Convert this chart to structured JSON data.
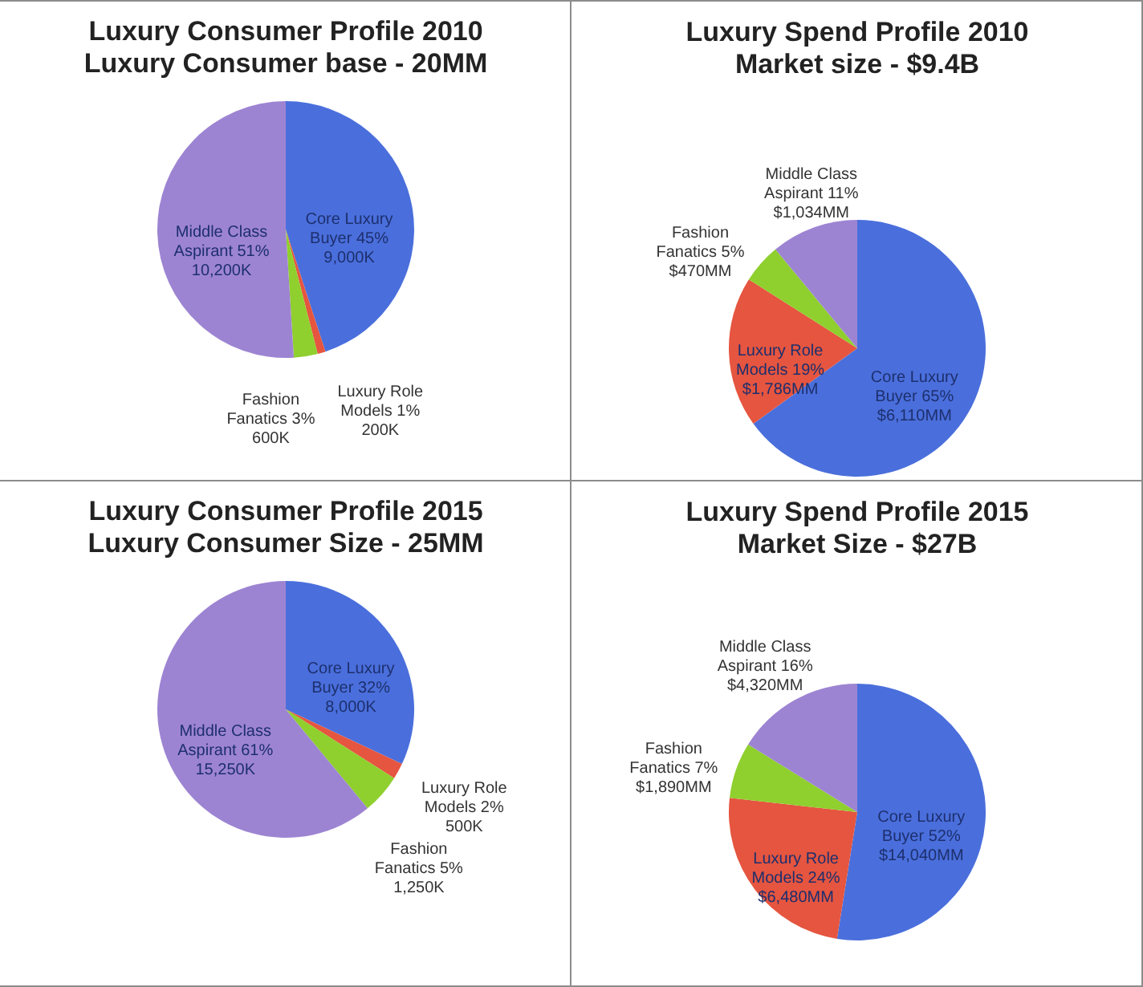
{
  "chart_data": [
    {
      "type": "pie",
      "title": "Luxury Consumer Profile 2010",
      "subtitle": "Luxury Consumer base - 20MM",
      "categories": [
        "Core Luxury Buyer",
        "Luxury Role Models",
        "Fashion Fanatics",
        "Middle Class Aspirant"
      ],
      "values": [
        45,
        1,
        3,
        51
      ],
      "value_labels": [
        "45% 9,000K",
        "1% 200K",
        "3% 600K",
        "51% 10,200K"
      ],
      "colors": [
        "#4a6fdc",
        "#e5553f",
        "#8fcf2e",
        "#9d84d2"
      ]
    },
    {
      "type": "pie",
      "title": "Luxury Spend Profile 2010",
      "subtitle": "Market size - $9.4B",
      "categories": [
        "Core Luxury Buyer",
        "Luxury Role Models",
        "Fashion Fanatics",
        "Middle Class Aspirant"
      ],
      "values": [
        6110,
        1786,
        470,
        1034
      ],
      "value_labels": [
        "65% $6,110MM",
        "19% $1,786MM",
        "5% $470MM",
        "11% $1,034MM"
      ],
      "colors": [
        "#4a6fdc",
        "#e5553f",
        "#8fcf2e",
        "#9d84d2"
      ]
    },
    {
      "type": "pie",
      "title": "Luxury Consumer Profile 2015",
      "subtitle": "Luxury Consumer Size - 25MM",
      "categories": [
        "Core Luxury Buyer",
        "Luxury Role Models",
        "Fashion Fanatics",
        "Middle Class Aspirant"
      ],
      "values": [
        32,
        2,
        5,
        61
      ],
      "value_labels": [
        "32% 8,000K",
        "2% 500K",
        "5% 1,250K",
        "61% 15,250K"
      ],
      "colors": [
        "#4a6fdc",
        "#e5553f",
        "#8fcf2e",
        "#9d84d2"
      ]
    },
    {
      "type": "pie",
      "title": "Luxury Spend Profile 2015",
      "subtitle": "Market Size - $27B",
      "categories": [
        "Core Luxury Buyer",
        "Luxury Role Models",
        "Fashion Fanatics",
        "Middle Class Aspirant"
      ],
      "values": [
        14040,
        6480,
        1890,
        4320
      ],
      "value_labels": [
        "52% $14,040MM",
        "24% $6,480MM",
        "7% $1,890MM",
        "16% $4,320MM"
      ],
      "colors": [
        "#4a6fdc",
        "#e5553f",
        "#8fcf2e",
        "#9d84d2"
      ]
    }
  ]
}
